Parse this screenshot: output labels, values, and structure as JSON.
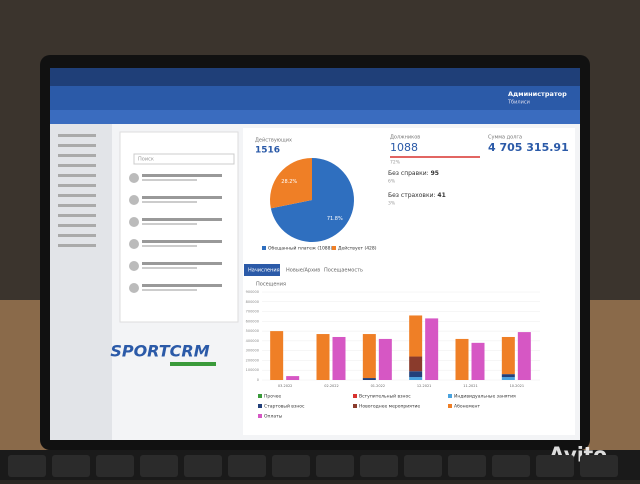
{
  "header": {
    "user": "Администратор",
    "city": "Тбилиси"
  },
  "clients": {
    "search": "Поиск"
  },
  "stats": {
    "active": {
      "label": "Действующих",
      "value": 1516
    },
    "debtors": {
      "label": "Должников",
      "value": 1088,
      "share": "72%"
    },
    "debt": {
      "label": "Сумма долга",
      "value": "4 705 315.91"
    },
    "no_ref": {
      "label": "Без справки:",
      "value": 95,
      "share": "6%"
    },
    "no_ins": {
      "label": "Без страховки:",
      "value": 41,
      "share": "3%"
    }
  },
  "pie": {
    "type": "pie",
    "values": [
      71.8,
      28.2
    ],
    "value_labels": [
      "71.8%",
      "28.2%"
    ],
    "colors": [
      "#2f6fbf",
      "#ef7f26"
    ],
    "legend": [
      "Обещанный платеж (1088)",
      "Действует (428)"
    ]
  },
  "tabs": [
    "Начисления",
    "Новые/Архив",
    "Посещаемость"
  ],
  "chart_data": {
    "type": "bar",
    "subtitle": "Посещения",
    "categories": [
      "03.2022",
      "02.2022",
      "01.2022",
      "12.2021",
      "11.2021",
      "10.2021"
    ],
    "ylim": [
      0,
      900000
    ],
    "yticks": [
      0,
      100000,
      200000,
      300000,
      400000,
      500000,
      600000,
      700000,
      800000,
      900000
    ],
    "grid": true,
    "series": [
      {
        "name": "Прочее",
        "color": "#3a9a3a",
        "side": "left",
        "values": [
          0,
          0,
          0,
          0,
          0,
          0
        ]
      },
      {
        "name": "Вступительный взнос",
        "color": "#d8322e",
        "side": "left",
        "values": [
          0,
          0,
          0,
          0,
          0,
          0
        ]
      },
      {
        "name": "Индивидуальные занятия",
        "color": "#4aa3df",
        "side": "left",
        "values": [
          0,
          0,
          0,
          30000,
          0,
          30000
        ]
      },
      {
        "name": "Стартовый взнос",
        "color": "#23407a",
        "side": "left",
        "values": [
          0,
          0,
          20000,
          60000,
          0,
          30000
        ]
      },
      {
        "name": "Новогоднее мероприятие",
        "color": "#8a3b2c",
        "side": "left",
        "values": [
          0,
          0,
          0,
          150000,
          0,
          0
        ]
      },
      {
        "name": "Абонемент",
        "color": "#ef7f26",
        "side": "left",
        "values": [
          500000,
          470000,
          450000,
          420000,
          420000,
          380000
        ]
      },
      {
        "name": "Оплаты",
        "color": "#d657c4",
        "side": "right",
        "values": [
          40000,
          440000,
          420000,
          630000,
          380000,
          490000
        ]
      }
    ]
  },
  "logo": "SPORTCRM",
  "watermark": "Avito"
}
